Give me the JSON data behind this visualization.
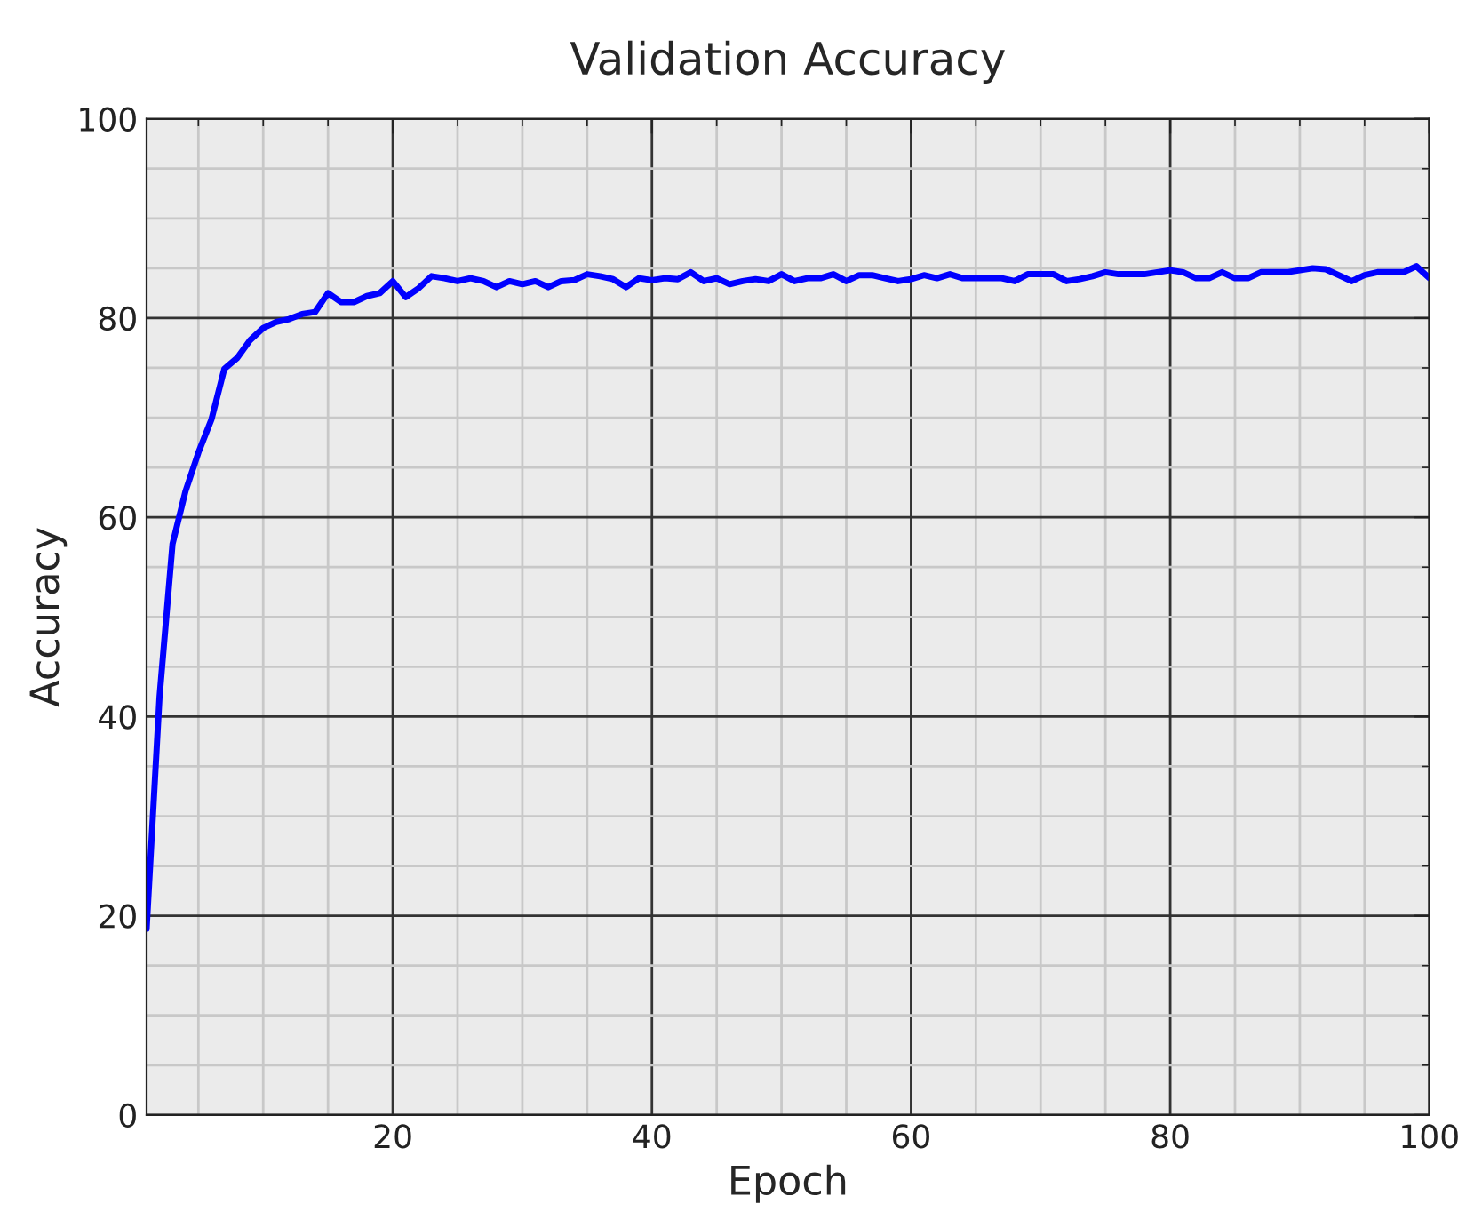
{
  "chart_data": {
    "type": "line",
    "title": "Validation Accuracy",
    "xlabel": "Epoch",
    "ylabel": "Accuracy",
    "x": [
      1,
      2,
      3,
      4,
      5,
      6,
      7,
      8,
      9,
      10,
      11,
      12,
      13,
      14,
      15,
      16,
      17,
      18,
      19,
      20,
      21,
      22,
      23,
      24,
      25,
      26,
      27,
      28,
      29,
      30,
      31,
      32,
      33,
      34,
      35,
      36,
      37,
      38,
      39,
      40,
      41,
      42,
      43,
      44,
      45,
      46,
      47,
      48,
      49,
      50,
      51,
      52,
      53,
      54,
      55,
      56,
      57,
      58,
      59,
      60,
      61,
      62,
      63,
      64,
      65,
      66,
      67,
      68,
      69,
      70,
      71,
      72,
      73,
      74,
      75,
      76,
      77,
      78,
      79,
      80,
      81,
      82,
      83,
      84,
      85,
      86,
      87,
      88,
      89,
      90,
      91,
      92,
      93,
      94,
      95,
      96,
      97,
      98,
      99,
      100
    ],
    "series": [
      {
        "color": "#0000ff",
        "values": [
          18.7,
          42,
          57.3,
          62.6,
          66.5,
          69.8,
          74.9,
          76,
          77.8,
          79,
          79.6,
          79.9,
          80.4,
          80.6,
          82.5,
          81.6,
          81.6,
          82.2,
          82.5,
          83.7,
          82.1,
          83.0,
          84.2,
          84.0,
          83.7,
          84.0,
          83.7,
          83.1,
          83.7,
          83.4,
          83.7,
          83.1,
          83.7,
          83.8,
          84.4,
          84.2,
          83.9,
          83.1,
          84.0,
          83.8,
          84.0,
          83.9,
          84.6,
          83.7,
          84.0,
          83.4,
          83.7,
          83.9,
          83.7,
          84.4,
          83.7,
          84.0,
          84.0,
          84.4,
          83.7,
          84.3,
          84.3,
          84.0,
          83.7,
          83.9,
          84.3,
          84.0,
          84.4,
          84.0,
          84.0,
          84.0,
          84.0,
          83.7,
          84.4,
          84.4,
          84.4,
          83.7,
          83.9,
          84.2,
          84.6,
          84.4,
          84.4,
          84.4,
          84.6,
          84.8,
          84.6,
          84.0,
          84.0,
          84.6,
          84.0,
          84.0,
          84.6,
          84.6,
          84.6,
          84.8,
          85.0,
          84.9,
          84.3,
          83.7,
          84.3,
          84.6,
          84.6,
          84.6,
          85.2,
          84.0
        ]
      }
    ],
    "xlim": [
      1,
      100
    ],
    "xticks": [
      {
        "value": 5,
        "label": null
      },
      {
        "value": 10,
        "label": null
      },
      {
        "value": 15,
        "label": null
      },
      20,
      {
        "value": 25,
        "label": null
      },
      {
        "value": 30,
        "label": null
      },
      {
        "value": 35,
        "label": null
      },
      40,
      {
        "value": 45,
        "label": null
      },
      {
        "value": 50,
        "label": null
      },
      {
        "value": 55,
        "label": null
      },
      60,
      {
        "value": 65,
        "label": null
      },
      {
        "value": 70,
        "label": null
      },
      {
        "value": 75,
        "label": null
      },
      80,
      {
        "value": 85,
        "label": null
      },
      {
        "value": 90,
        "label": null
      },
      {
        "value": 95,
        "label": null
      },
      100
    ],
    "ylim": [
      0,
      100
    ],
    "yticks": [
      0,
      {
        "value": 5,
        "label": null
      },
      {
        "value": 10,
        "label": null
      },
      {
        "value": 15,
        "label": null
      },
      20,
      {
        "value": 25,
        "label": null
      },
      {
        "value": 30,
        "label": null
      },
      {
        "value": 35,
        "label": null
      },
      40,
      {
        "value": 45,
        "label": null
      },
      {
        "value": 50,
        "label": null
      },
      {
        "value": 55,
        "label": null
      },
      60,
      {
        "value": 65,
        "label": null
      },
      {
        "value": 70,
        "label": null
      },
      {
        "value": 75,
        "label": null
      },
      80,
      {
        "value": 85,
        "label": null
      },
      {
        "value": 90,
        "label": null
      },
      {
        "value": 95,
        "label": null
      },
      100
    ],
    "grid": true,
    "legend": false,
    "marker": "none",
    "line_style": "solid"
  }
}
